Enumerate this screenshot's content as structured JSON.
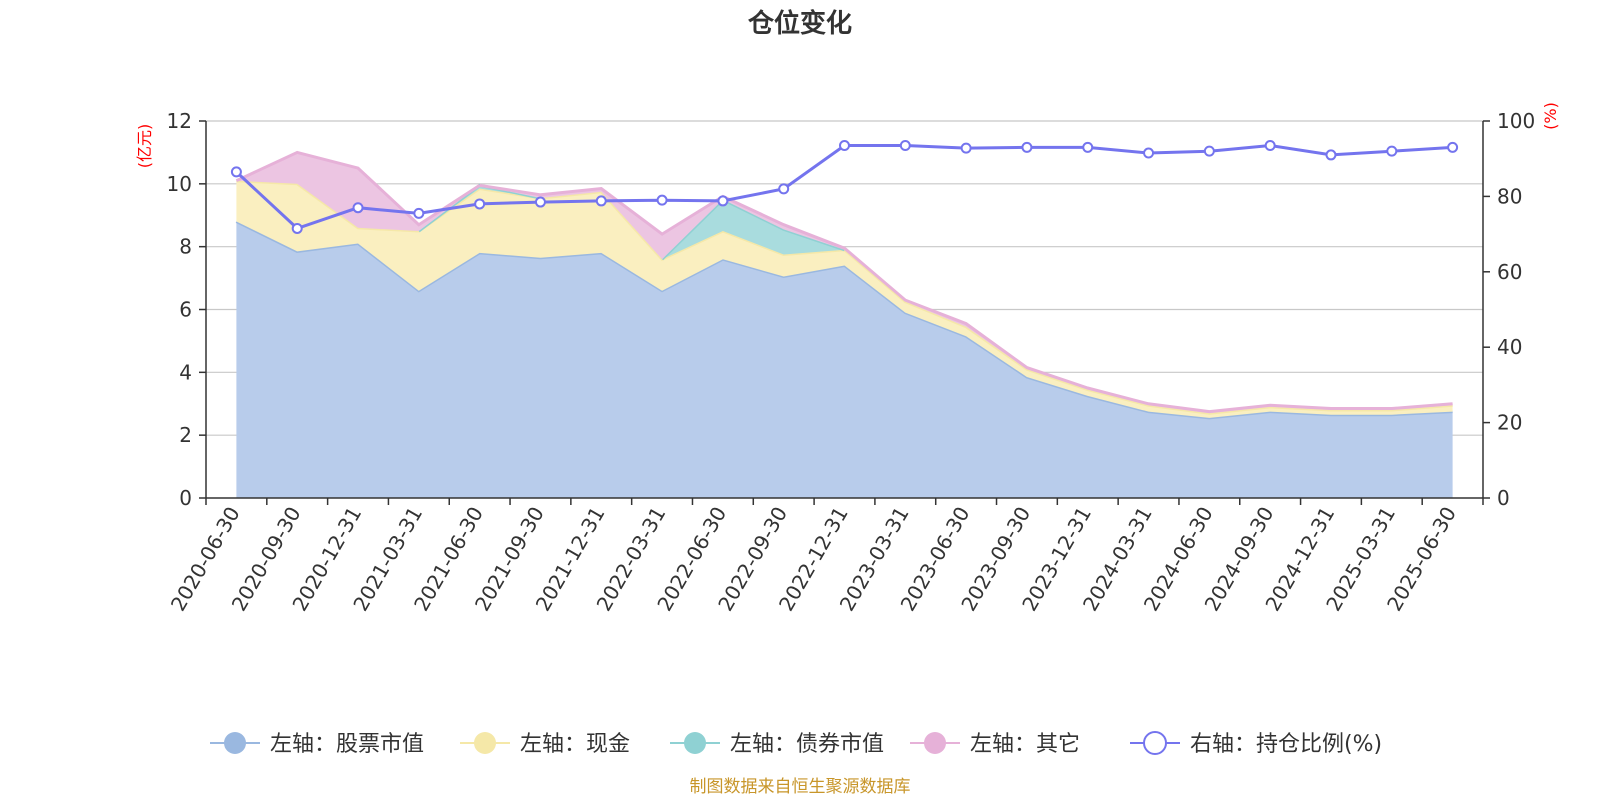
{
  "title": "仓位变化",
  "source_note": "制图数据来自恒生聚源数据库",
  "left_axis_unit": "(亿元)",
  "right_axis_unit": "(%)",
  "chart_data": {
    "type": "area",
    "title": "仓位变化",
    "categories": [
      "2020-06-30",
      "2020-09-30",
      "2020-12-31",
      "2021-03-31",
      "2021-06-30",
      "2021-09-30",
      "2021-12-31",
      "2022-03-31",
      "2022-06-30",
      "2022-09-30",
      "2022-12-31",
      "2023-03-31",
      "2023-06-30",
      "2023-09-30",
      "2023-12-31",
      "2024-03-31",
      "2024-06-30",
      "2024-09-30",
      "2024-12-31",
      "2025-03-31",
      "2025-06-30"
    ],
    "left_axis": {
      "unit": "(亿元)",
      "ylim": [
        0,
        12
      ],
      "ticks": [
        0,
        2,
        4,
        6,
        8,
        10,
        12
      ]
    },
    "right_axis": {
      "unit": "(%)",
      "ylim": [
        0,
        100
      ],
      "ticks": [
        0,
        20,
        40,
        60,
        80,
        100
      ]
    },
    "grid": true,
    "legend_position": "bottom",
    "series": [
      {
        "name": "左轴：股票市值",
        "axis": "left",
        "kind": "stacked-area",
        "color": "#9ab8e0",
        "fill": "#b8cceb",
        "values": [
          8.8,
          7.85,
          8.1,
          6.6,
          7.8,
          7.65,
          7.8,
          6.6,
          7.6,
          7.05,
          7.4,
          5.9,
          5.15,
          3.85,
          3.25,
          2.75,
          2.55,
          2.75,
          2.65,
          2.65,
          2.75
        ]
      },
      {
        "name": "左轴：现金",
        "axis": "left",
        "kind": "stacked-area",
        "color": "#f5e8a8",
        "fill": "#faefc0",
        "values": [
          1.3,
          2.15,
          0.5,
          1.9,
          2.05,
          1.9,
          1.95,
          1.0,
          0.9,
          0.7,
          0.5,
          0.35,
          0.3,
          0.25,
          0.2,
          0.2,
          0.15,
          0.15,
          0.15,
          0.15,
          0.2
        ]
      },
      {
        "name": "左轴：债券市值",
        "axis": "left",
        "kind": "stacked-area",
        "color": "#8fd1d3",
        "fill": "#a9dcde",
        "values": [
          0,
          0,
          0,
          0,
          0.1,
          0,
          0,
          0,
          1.0,
          0.8,
          0,
          0,
          0,
          0,
          0,
          0,
          0,
          0,
          0,
          0,
          0
        ]
      },
      {
        "name": "左轴：其它",
        "axis": "left",
        "kind": "stacked-area",
        "color": "#e6b1d8",
        "fill": "#ecc5e2",
        "values": [
          0,
          1.0,
          1.9,
          0.2,
          0,
          0.1,
          0.1,
          0.8,
          0.1,
          0.15,
          0.05,
          0.05,
          0.1,
          0.05,
          0.05,
          0.05,
          0.05,
          0.05,
          0.05,
          0.05,
          0.05
        ]
      },
      {
        "name": "右轴：持仓比例(%)",
        "axis": "right",
        "kind": "line",
        "color": "#7474ee",
        "values": [
          86.5,
          71.5,
          77,
          75.5,
          78,
          78.5,
          78.8,
          79,
          78.8,
          82,
          93.5,
          93.5,
          92.8,
          93,
          93,
          91.5,
          92,
          93.5,
          91,
          92,
          93
        ]
      }
    ]
  },
  "legend": [
    {
      "label": "左轴：股票市值",
      "color": "#9ab8e0",
      "marker": "filled-circle"
    },
    {
      "label": "左轴：现金",
      "color": "#f5e8a8",
      "marker": "filled-circle"
    },
    {
      "label": "左轴：债券市值",
      "color": "#8fd1d3",
      "marker": "filled-circle"
    },
    {
      "label": "左轴：其它",
      "color": "#e6b1d8",
      "marker": "filled-circle"
    },
    {
      "label": "右轴：持仓比例(%)",
      "color": "#7474ee",
      "marker": "hollow-circle"
    }
  ]
}
